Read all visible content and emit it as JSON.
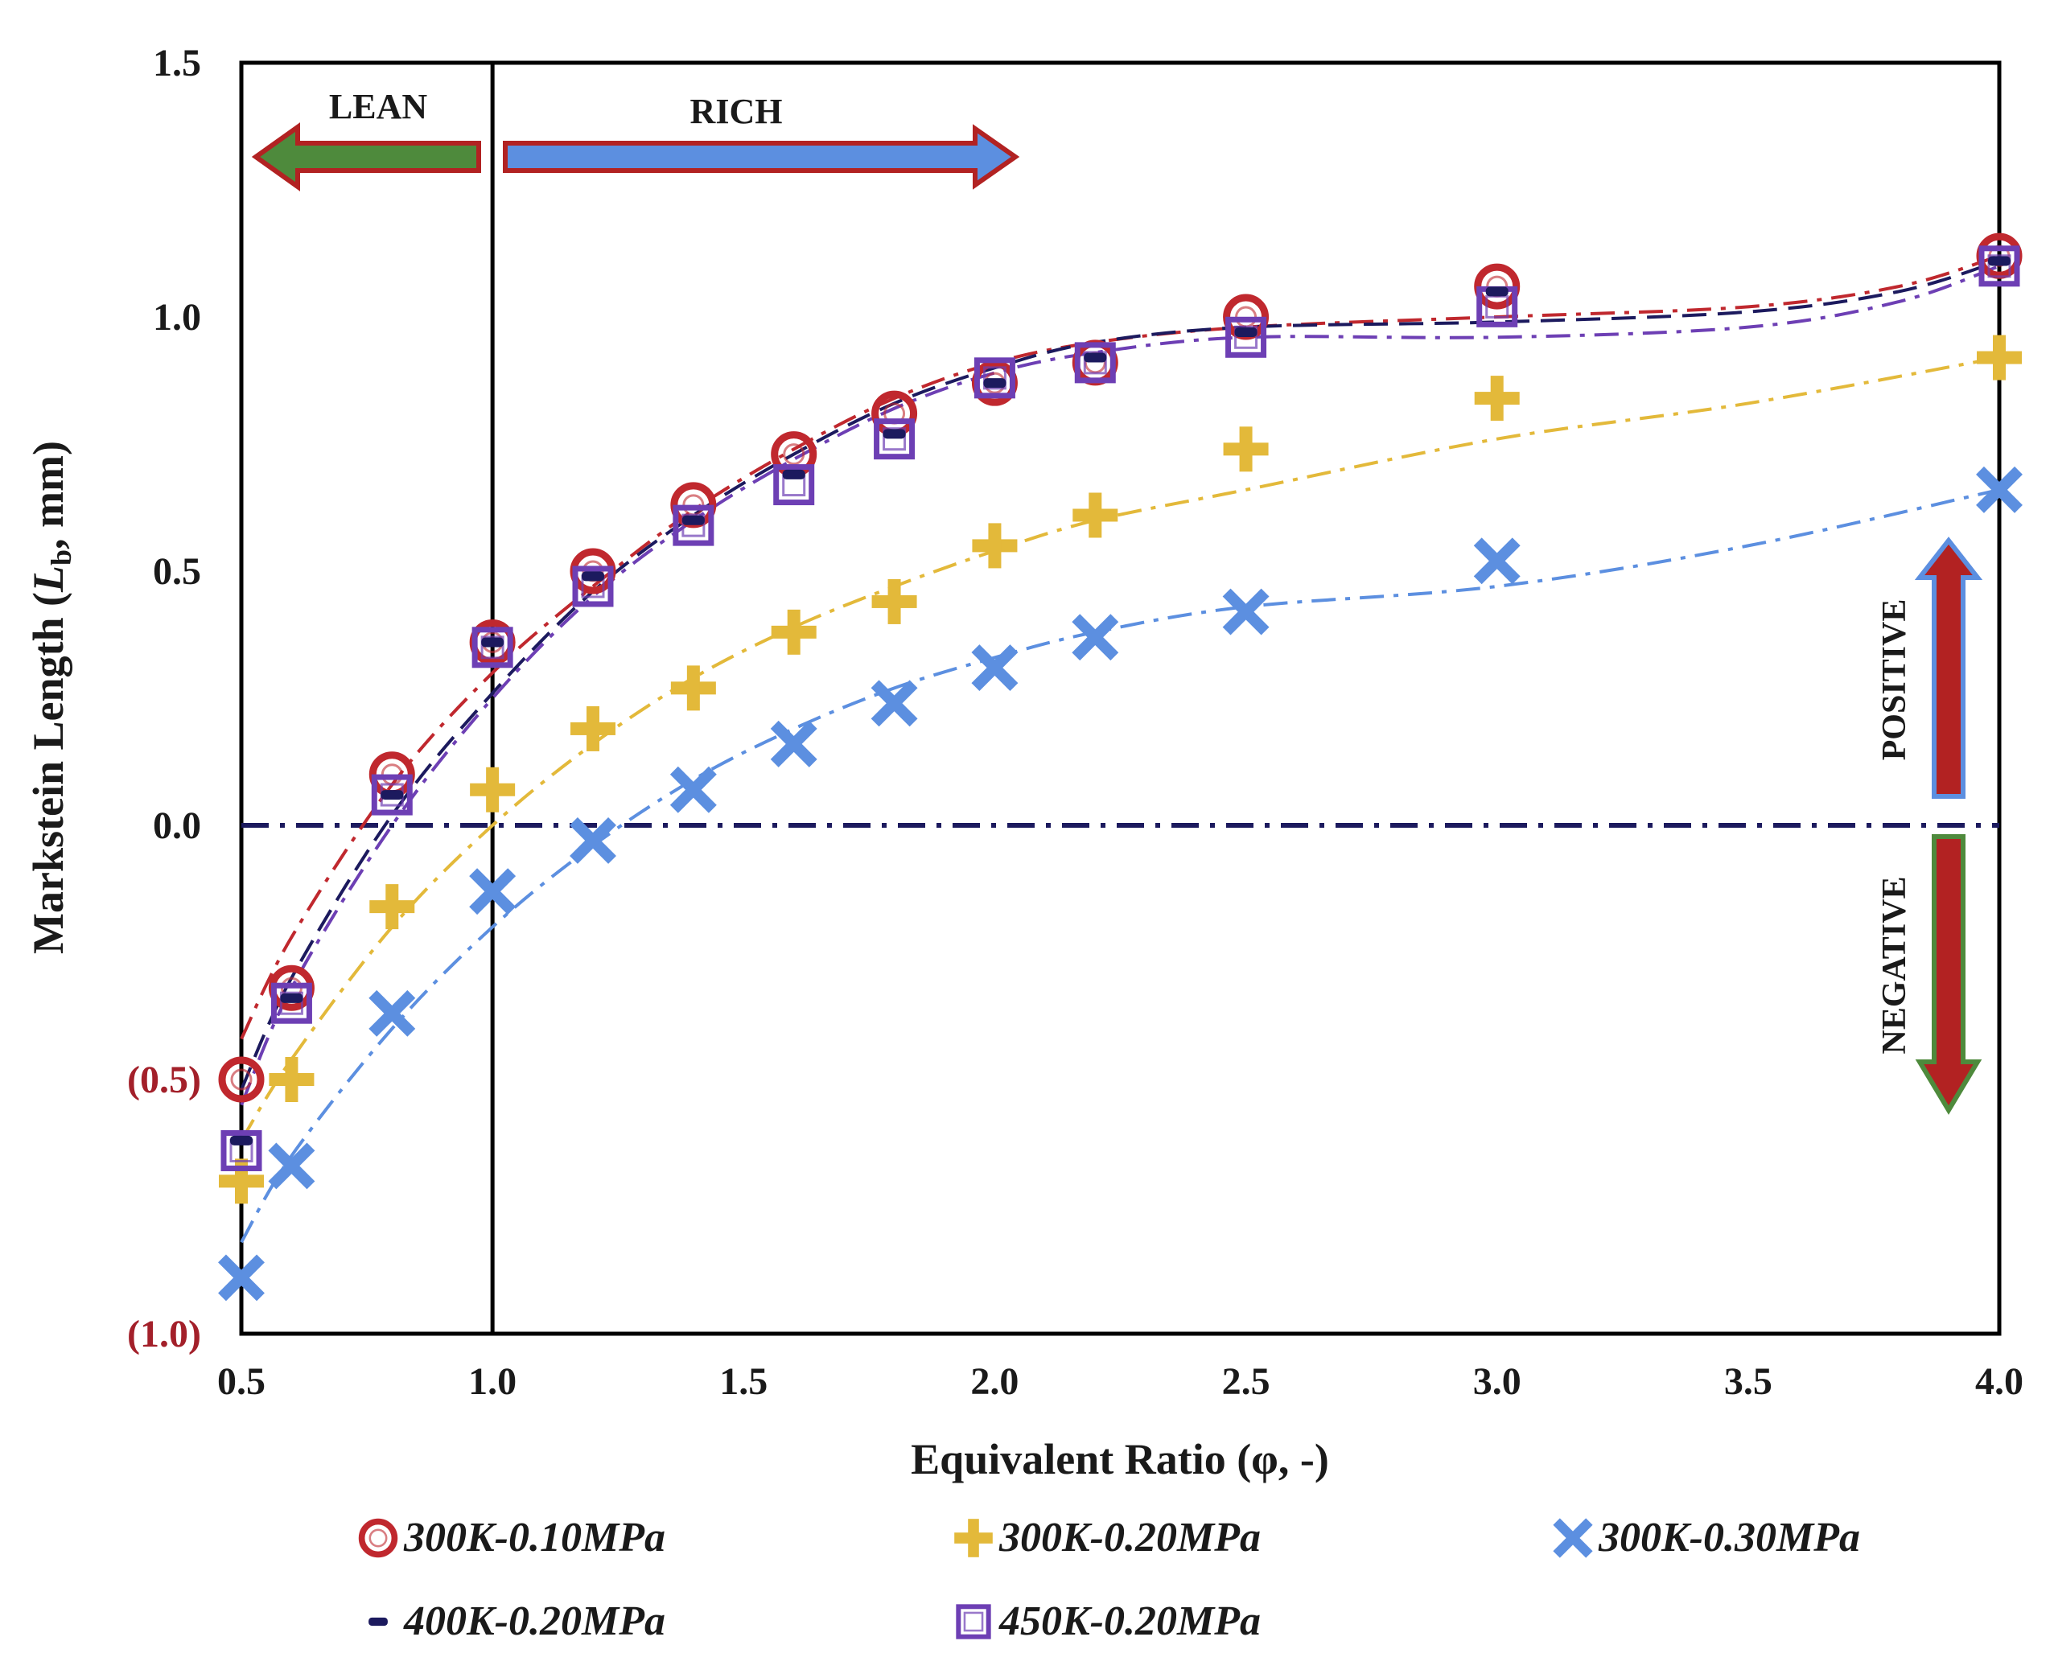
{
  "chart_data": {
    "type": "scatter",
    "title": "",
    "xlabel": "Equivalent Ratio (φ, -)",
    "ylabel_prefix": "Markstein Length (",
    "ylabel_symbol": "L",
    "ylabel_subscript": "b",
    "ylabel_suffix": ", mm)",
    "xlim": [
      0.5,
      4.0
    ],
    "ylim": [
      -1.0,
      1.5
    ],
    "x_ticks": [
      {
        "value": 0.5,
        "label": "0.5"
      },
      {
        "value": 1.0,
        "label": "1.0"
      },
      {
        "value": 1.5,
        "label": "1.5"
      },
      {
        "value": 2.0,
        "label": "2.0"
      },
      {
        "value": 2.5,
        "label": "2.5"
      },
      {
        "value": 3.0,
        "label": "3.0"
      },
      {
        "value": 3.5,
        "label": "3.5"
      },
      {
        "value": 4.0,
        "label": "4.0"
      }
    ],
    "y_ticks": [
      {
        "value": 1.5,
        "label": "1.5",
        "color": "#1a1a1a"
      },
      {
        "value": 1.0,
        "label": "1.0",
        "color": "#1a1a1a"
      },
      {
        "value": 0.5,
        "label": "0.5",
        "color": "#1a1a1a"
      },
      {
        "value": 0.0,
        "label": "0.0",
        "color": "#1a1a1a"
      },
      {
        "value": -0.5,
        "label": "(0.5)",
        "color": "#a3202a"
      },
      {
        "value": -1.0,
        "label": "(1.0)",
        "color": "#a3202a"
      }
    ],
    "grid": false,
    "legend_position": "bottom",
    "series": [
      {
        "name": "300K-0.10MPa",
        "marker": "circle",
        "color": "#c0282e",
        "line_style": "dashdot",
        "x": [
          0.5,
          0.6,
          0.8,
          1.0,
          1.2,
          1.4,
          1.6,
          1.8,
          2.0,
          2.2,
          2.5,
          3.0,
          4.0
        ],
        "y": [
          -0.5,
          -0.32,
          0.1,
          0.36,
          0.5,
          0.63,
          0.73,
          0.81,
          0.87,
          0.91,
          1.0,
          1.06,
          1.12
        ],
        "fit": [
          [
            0.5,
            -0.42
          ],
          [
            0.6,
            -0.22
          ],
          [
            0.8,
            0.08
          ],
          [
            1.0,
            0.3
          ],
          [
            1.2,
            0.47
          ],
          [
            1.4,
            0.62
          ],
          [
            1.6,
            0.74
          ],
          [
            1.8,
            0.84
          ],
          [
            2.0,
            0.91
          ],
          [
            2.2,
            0.95
          ],
          [
            2.5,
            0.98
          ],
          [
            3.0,
            1.0
          ],
          [
            3.5,
            1.02
          ],
          [
            3.8,
            1.06
          ],
          [
            4.0,
            1.12
          ]
        ]
      },
      {
        "name": "300K-0.20MPa",
        "marker": "plus",
        "color": "#e3b93a",
        "line_style": "dashdot",
        "x": [
          0.5,
          0.6,
          0.8,
          1.0,
          1.2,
          1.4,
          1.6,
          1.8,
          2.0,
          2.2,
          2.5,
          3.0,
          4.0
        ],
        "y": [
          -0.7,
          -0.5,
          -0.16,
          0.07,
          0.19,
          0.27,
          0.38,
          0.44,
          0.55,
          0.61,
          0.74,
          0.84,
          0.92
        ],
        "fit": [
          [
            0.5,
            -0.62
          ],
          [
            0.6,
            -0.46
          ],
          [
            0.8,
            -0.2
          ],
          [
            1.0,
            0.0
          ],
          [
            1.2,
            0.16
          ],
          [
            1.4,
            0.29
          ],
          [
            1.6,
            0.39
          ],
          [
            1.8,
            0.47
          ],
          [
            2.0,
            0.54
          ],
          [
            2.2,
            0.6
          ],
          [
            2.5,
            0.66
          ],
          [
            3.0,
            0.76
          ],
          [
            3.5,
            0.83
          ],
          [
            4.0,
            0.92
          ]
        ]
      },
      {
        "name": "300K-0.30MPa",
        "marker": "cross",
        "color": "#5c8fe0",
        "line_style": "dashdot",
        "x": [
          0.5,
          0.6,
          0.8,
          1.0,
          1.2,
          1.4,
          1.6,
          1.8,
          2.0,
          2.2,
          2.5,
          3.0,
          4.0
        ],
        "y": [
          -0.89,
          -0.67,
          -0.37,
          -0.13,
          -0.03,
          0.07,
          0.16,
          0.24,
          0.31,
          0.37,
          0.42,
          0.52,
          0.66
        ],
        "fit": [
          [
            0.5,
            -0.82
          ],
          [
            0.6,
            -0.65
          ],
          [
            0.8,
            -0.4
          ],
          [
            1.0,
            -0.2
          ],
          [
            1.2,
            -0.04
          ],
          [
            1.4,
            0.09
          ],
          [
            1.6,
            0.19
          ],
          [
            1.8,
            0.27
          ],
          [
            2.0,
            0.33
          ],
          [
            2.2,
            0.38
          ],
          [
            2.5,
            0.43
          ],
          [
            3.0,
            0.47
          ],
          [
            3.5,
            0.55
          ],
          [
            4.0,
            0.66
          ]
        ]
      },
      {
        "name": "400K-0.20MPa",
        "marker": "dash",
        "color": "#1c1a5e",
        "line_style": "dash",
        "x": [
          0.5,
          0.6,
          0.8,
          1.0,
          1.2,
          1.4,
          1.6,
          1.8,
          2.0,
          2.2,
          2.5,
          3.0,
          4.0
        ],
        "y": [
          -0.62,
          -0.34,
          0.06,
          0.36,
          0.49,
          0.6,
          0.69,
          0.77,
          0.87,
          0.92,
          0.97,
          1.05,
          1.11
        ],
        "fit": [
          [
            0.5,
            -0.52
          ],
          [
            0.6,
            -0.3
          ],
          [
            0.8,
            0.02
          ],
          [
            1.0,
            0.26
          ],
          [
            1.2,
            0.46
          ],
          [
            1.4,
            0.61
          ],
          [
            1.6,
            0.73
          ],
          [
            1.8,
            0.83
          ],
          [
            2.0,
            0.9
          ],
          [
            2.2,
            0.95
          ],
          [
            2.5,
            0.98
          ],
          [
            3.0,
            0.99
          ],
          [
            3.5,
            1.01
          ],
          [
            3.8,
            1.05
          ],
          [
            4.0,
            1.11
          ]
        ]
      },
      {
        "name": "450K-0.20MPa",
        "marker": "square",
        "color": "#6d3fb4",
        "line_style": "dashdot",
        "x": [
          0.5,
          0.6,
          0.8,
          1.0,
          1.2,
          1.4,
          1.6,
          1.8,
          2.0,
          2.2,
          2.5,
          3.0,
          4.0
        ],
        "y": [
          -0.64,
          -0.35,
          0.06,
          0.35,
          0.47,
          0.59,
          0.67,
          0.76,
          0.88,
          0.91,
          0.96,
          1.02,
          1.1
        ],
        "fit": [
          [
            0.5,
            -0.55
          ],
          [
            0.6,
            -0.32
          ],
          [
            0.8,
            0.0
          ],
          [
            1.0,
            0.25
          ],
          [
            1.2,
            0.45
          ],
          [
            1.4,
            0.6
          ],
          [
            1.6,
            0.72
          ],
          [
            1.8,
            0.82
          ],
          [
            2.0,
            0.89
          ],
          [
            2.2,
            0.93
          ],
          [
            2.5,
            0.96
          ],
          [
            3.0,
            0.96
          ],
          [
            3.5,
            0.98
          ],
          [
            3.8,
            1.03
          ],
          [
            4.0,
            1.1
          ]
        ]
      }
    ],
    "reference_lines": [
      {
        "orientation": "horizontal",
        "value": 0.0,
        "color": "#1c1a5e",
        "style": "dashdot"
      },
      {
        "orientation": "vertical",
        "value": 1.0,
        "color": "#000000",
        "style": "solid"
      }
    ],
    "annotations": {
      "lean_label": "LEAN",
      "rich_label": "RICH",
      "positive_label": "POSITIVE",
      "negative_label": "NEGATIVE",
      "lean_arrow_color": "#4e8a3c",
      "rich_arrow_color": "#5c8fe0",
      "arrow_outline_color": "#b22222"
    }
  }
}
